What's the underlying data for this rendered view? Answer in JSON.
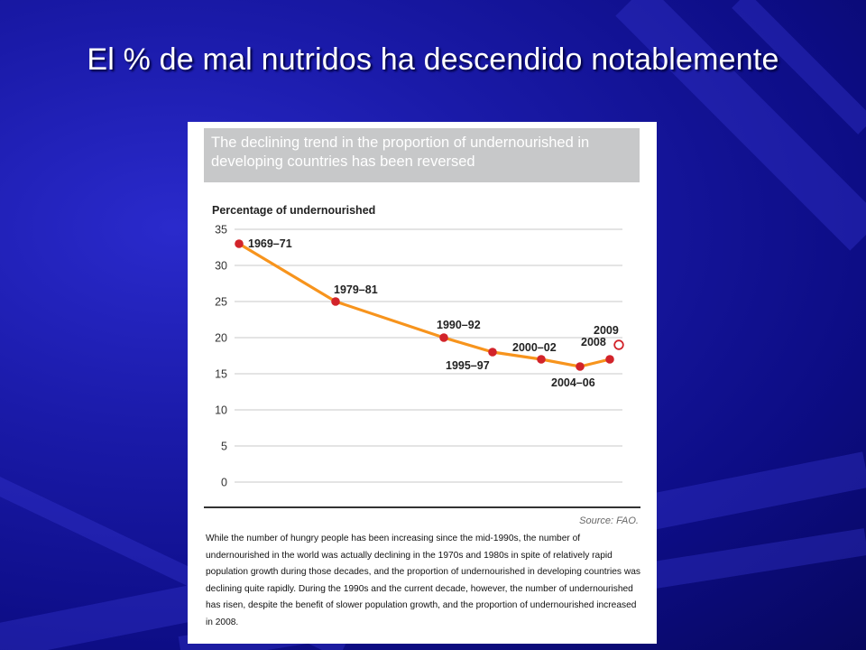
{
  "slide": {
    "title": "El % de mal nutridos ha descendido notablemente"
  },
  "colors": {
    "background": "#10109a",
    "line": "#f7941d",
    "marker": "#d2232a",
    "projected_marker": "#d2232a",
    "grid": "#c8c8c8"
  },
  "figure": {
    "header": "The declining trend in the proportion of undernourished in developing countries has been reversed",
    "source": "Source: FAO.",
    "caption": "While the number of hungry people has been increasing since the mid-1990s, the number of undernourished in the world was actually declining in the 1970s and 1980s in spite of relatively rapid population growth during those decades, and the proportion of undernourished in developing countries was declining quite rapidly. During the 1990s and the current decade, however, the number of undernourished has risen, despite the benefit of slower population growth, and the proportion of undernourished increased in 2008."
  },
  "chart_data": {
    "type": "line",
    "title": "The declining trend in the proportion of undernourished in developing countries has been reversed",
    "ylabel": "Percentage of undernourished",
    "xlabel": "",
    "ylim": [
      0,
      35
    ],
    "yticks": [
      0,
      5,
      10,
      15,
      20,
      25,
      30,
      35
    ],
    "grid": true,
    "categories": [
      "1969–71",
      "1979–81",
      "1990–92",
      "1995–97",
      "2000–02",
      "2004–06",
      "2008",
      "2009"
    ],
    "series": [
      {
        "values": [
          33,
          25,
          20,
          18,
          17,
          16,
          17,
          19
        ]
      }
    ],
    "projected_points": [
      "2009"
    ]
  }
}
